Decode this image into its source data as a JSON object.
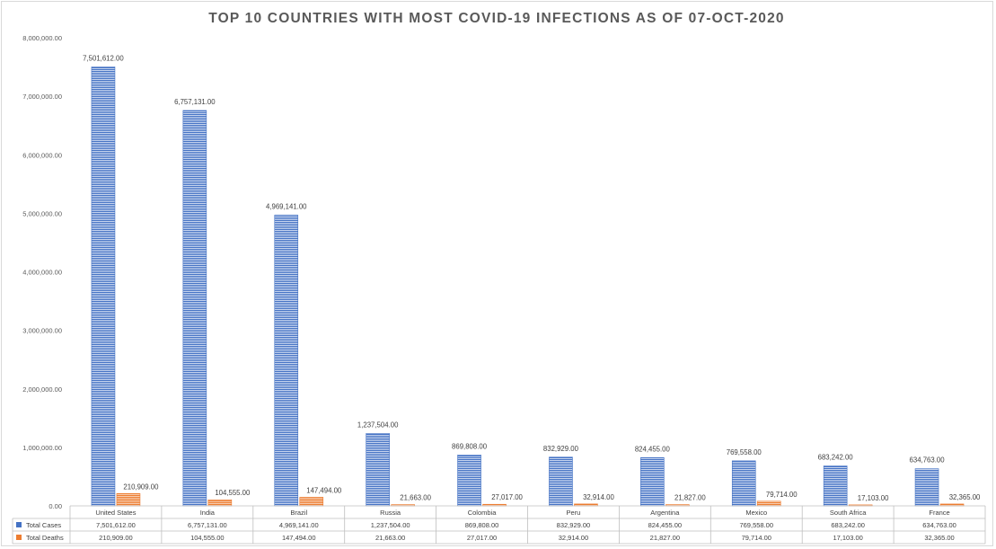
{
  "chart_data": {
    "type": "bar",
    "title": "TOP 10 COUNTRIES WITH MOST COVID-19 INFECTIONS AS OF 07-OCT-2020",
    "categories": [
      "United States",
      "India",
      "Brazil",
      "Russia",
      "Colombia",
      "Peru",
      "Argentina",
      "Mexico",
      "South Africa",
      "France"
    ],
    "series": [
      {
        "name": "Total Cases",
        "values": [
          7501612,
          6757131,
          4969141,
          1237504,
          869808,
          832929,
          824455,
          769558,
          683242,
          634763
        ],
        "labels": [
          "7,501,612.00",
          "6,757,131.00",
          "4,969,141.00",
          "1,237,504.00",
          "869,808.00",
          "832,929.00",
          "824,455.00",
          "769,558.00",
          "683,242.00",
          "634,763.00"
        ],
        "color": "#4472c4"
      },
      {
        "name": "Total Deaths",
        "values": [
          210909,
          104555,
          147494,
          21663,
          27017,
          32914,
          21827,
          79714,
          17103,
          32365
        ],
        "labels": [
          "210,909.00",
          "104,555.00",
          "147,494.00",
          "21,663.00",
          "27,017.00",
          "32,914.00",
          "21,827.00",
          "79,714.00",
          "17,103.00",
          "32,365.00"
        ],
        "color": "#ed7d31"
      }
    ],
    "ylim": [
      0,
      8000000
    ],
    "y_ticks": [
      "0.00",
      "1,000,000.00",
      "2,000,000.00",
      "3,000,000.00",
      "4,000,000.00",
      "5,000,000.00",
      "6,000,000.00",
      "7,000,000.00",
      "8,000,000.00"
    ],
    "grid": false,
    "legend": "data-table"
  }
}
